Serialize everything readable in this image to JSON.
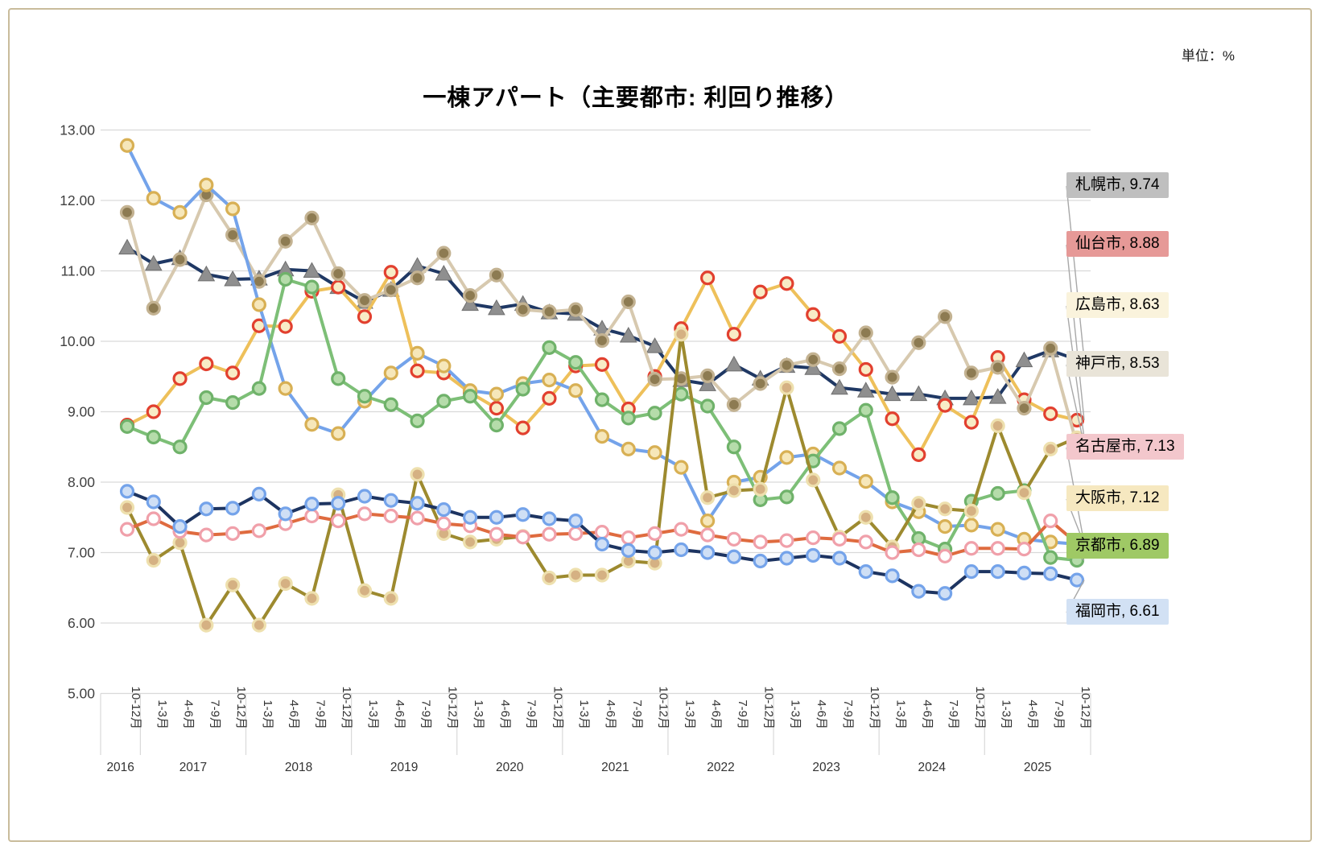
{
  "header": {
    "title": "一棟アパート（主要都市: 利回り推移）",
    "unit_label": "単位：%"
  },
  "chart_data": {
    "type": "line",
    "title": "一棟アパート（主要都市: 利回り推移）",
    "unit": "%",
    "ylim": [
      5,
      13
    ],
    "y_tick_step": 1,
    "y_ticks": [
      "13.00",
      "12.00",
      "11.00",
      "10.00",
      "9.00",
      "8.00",
      "7.00",
      "6.00",
      "5.00"
    ],
    "grid": "horizontal",
    "legend_position": "right-callouts",
    "years": [
      "2016",
      "2017",
      "2018",
      "2019",
      "2020",
      "2021",
      "2022",
      "2023",
      "2024",
      "2025"
    ],
    "quarters_per_year": [
      1,
      4,
      4,
      4,
      4,
      4,
      4,
      4,
      4,
      4
    ],
    "quarter_labels": [
      "10-12月",
      "1-3月",
      "4-6月",
      "7-9月",
      "10-12月",
      "1-3月",
      "4-6月",
      "7-9月",
      "10-12月",
      "1-3月",
      "4-6月",
      "7-9月",
      "10-12月",
      "1-3月",
      "4-6月",
      "7-9月",
      "10-12月",
      "1-3月",
      "4-6月",
      "7-9月",
      "10-12月",
      "1-3月",
      "4-6月",
      "7-9月",
      "10-12月",
      "1-3月",
      "4-6月",
      "7-9月",
      "10-12月",
      "1-3月",
      "4-6月",
      "7-9月",
      "10-12月",
      "1-3月",
      "4-6月",
      "7-9月",
      "10-12月"
    ],
    "draw_order": [
      "sapporo",
      "sendai",
      "kobe",
      "osaka",
      "kyoto",
      "hiroshima",
      "nagoya",
      "fukuoka"
    ],
    "series": [
      {
        "key": "sapporo",
        "name": "札幌市",
        "final_value": 9.74,
        "legend_label": "札幌市, 9.74",
        "legend_bg": "#bfbfbf",
        "line_color": "#1f3864",
        "marker": "triangle",
        "marker_fill": "#8f8f8f",
        "marker_stroke": "#6e6e6e",
        "values": [
          11.33,
          11.1,
          11.18,
          10.95,
          10.88,
          10.89,
          11.02,
          11.0,
          10.77,
          10.56,
          10.73,
          11.07,
          10.96,
          10.53,
          10.47,
          10.53,
          10.41,
          10.39,
          10.18,
          10.08,
          9.93,
          9.45,
          9.39,
          9.67,
          9.47,
          9.65,
          9.62,
          9.34,
          9.3,
          9.25,
          9.25,
          9.19,
          9.19,
          9.21,
          9.73,
          9.87,
          9.74
        ]
      },
      {
        "key": "sendai",
        "name": "仙台市",
        "final_value": 8.88,
        "legend_label": "仙台市, 8.88",
        "legend_bg": "#e69997",
        "line_color": "#eec05a",
        "marker": "circle",
        "marker_fill": "#f8ecc6",
        "marker_stroke": "#e2402f",
        "values": [
          8.81,
          9.0,
          9.47,
          9.68,
          9.55,
          10.22,
          10.21,
          10.71,
          10.77,
          10.35,
          10.98,
          9.58,
          9.55,
          9.27,
          9.05,
          8.77,
          9.19,
          9.65,
          9.67,
          9.04,
          9.5,
          10.18,
          10.9,
          10.1,
          10.7,
          10.82,
          10.38,
          10.07,
          9.6,
          8.9,
          8.39,
          9.09,
          8.85,
          9.77,
          9.17,
          8.97,
          8.88
        ]
      },
      {
        "key": "hiroshima",
        "name": "広島市",
        "final_value": 8.63,
        "legend_label": "広島市, 8.63",
        "legend_bg": "#faf3dc",
        "line_color": "#9d8a2f",
        "marker": "circle",
        "marker_fill": "#d5b183",
        "marker_stroke": "#eee0ae",
        "values": [
          7.64,
          6.89,
          7.14,
          5.97,
          6.54,
          5.97,
          6.56,
          6.35,
          7.82,
          6.46,
          6.35,
          8.11,
          7.27,
          7.15,
          7.19,
          7.23,
          6.64,
          6.68,
          6.68,
          6.88,
          6.85,
          10.1,
          7.78,
          7.88,
          7.9,
          9.34,
          8.03,
          7.22,
          7.5,
          7.08,
          7.7,
          7.62,
          7.59,
          8.8,
          7.85,
          8.47,
          8.63
        ]
      },
      {
        "key": "kobe",
        "name": "神戸市",
        "final_value": 8.53,
        "legend_label": "神戸市, 8.53",
        "legend_bg": "#e9e4d8",
        "line_color": "#d7c9af",
        "marker": "circle",
        "marker_fill": "#8d7b52",
        "marker_stroke": "#c3b291",
        "values": [
          11.83,
          10.47,
          11.16,
          12.08,
          11.51,
          10.85,
          11.42,
          11.75,
          10.96,
          10.58,
          10.73,
          10.9,
          11.25,
          10.65,
          10.94,
          10.45,
          10.42,
          10.45,
          10.01,
          10.56,
          9.46,
          9.47,
          9.51,
          9.1,
          9.4,
          9.66,
          9.74,
          9.61,
          10.12,
          9.49,
          9.98,
          10.35,
          9.55,
          9.63,
          9.05,
          9.9,
          8.53
        ]
      },
      {
        "key": "nagoya",
        "name": "名古屋市",
        "final_value": 7.13,
        "legend_label": "名古屋市, 7.13",
        "legend_bg": "#f3c7cc",
        "line_color": "#df6b3f",
        "marker": "circle",
        "marker_fill": "#ffffff",
        "marker_stroke": "#f0a0aa",
        "values": [
          7.33,
          7.48,
          7.3,
          7.25,
          7.27,
          7.31,
          7.41,
          7.52,
          7.45,
          7.55,
          7.52,
          7.49,
          7.41,
          7.38,
          7.26,
          7.22,
          7.26,
          7.27,
          7.29,
          7.21,
          7.27,
          7.33,
          7.25,
          7.19,
          7.15,
          7.17,
          7.21,
          7.19,
          7.15,
          7.0,
          7.04,
          6.95,
          7.06,
          7.06,
          7.05,
          7.45,
          7.13
        ]
      },
      {
        "key": "osaka",
        "name": "大阪市",
        "final_value": 7.12,
        "legend_label": "大阪市, 7.12",
        "legend_bg": "#f6e8c0",
        "line_color": "#74a3ea",
        "marker": "circle",
        "marker_fill": "#f6e7ba",
        "marker_stroke": "#d8b054",
        "values": [
          12.78,
          12.03,
          11.83,
          12.22,
          11.88,
          10.52,
          9.33,
          8.82,
          8.69,
          9.15,
          9.55,
          9.83,
          9.65,
          9.3,
          9.25,
          9.4,
          9.45,
          9.3,
          8.65,
          8.47,
          8.42,
          8.21,
          7.45,
          8.0,
          8.07,
          8.35,
          8.4,
          8.2,
          8.01,
          7.72,
          7.58,
          7.37,
          7.39,
          7.33,
          7.19,
          7.15,
          7.12
        ]
      },
      {
        "key": "kyoto",
        "name": "京都市",
        "final_value": 6.89,
        "legend_label": "京都市, 6.89",
        "legend_bg": "#9fc965",
        "line_color": "#7dbf77",
        "marker": "circle",
        "marker_fill": "#b5dcaa",
        "marker_stroke": "#6fb26a",
        "values": [
          8.79,
          8.64,
          8.5,
          9.2,
          9.13,
          9.33,
          10.88,
          10.77,
          9.47,
          9.22,
          9.1,
          8.87,
          9.15,
          9.22,
          8.81,
          9.32,
          9.91,
          9.7,
          9.17,
          8.91,
          8.98,
          9.25,
          9.08,
          8.5,
          7.75,
          7.79,
          8.3,
          8.76,
          9.02,
          7.78,
          7.2,
          7.05,
          7.73,
          7.84,
          7.88,
          6.93,
          6.89
        ]
      },
      {
        "key": "fukuoka",
        "name": "福岡市",
        "final_value": 6.61,
        "legend_label": "福岡市, 6.61",
        "legend_bg": "#d2e1f4",
        "line_color": "#1d3461",
        "marker": "circle",
        "marker_fill": "#cfdff5",
        "marker_stroke": "#74a3ea",
        "values": [
          7.87,
          7.72,
          7.37,
          7.62,
          7.63,
          7.83,
          7.55,
          7.69,
          7.7,
          7.8,
          7.74,
          7.7,
          7.61,
          7.5,
          7.5,
          7.54,
          7.48,
          7.45,
          7.12,
          7.03,
          7.0,
          7.04,
          7.0,
          6.94,
          6.88,
          6.92,
          6.96,
          6.92,
          6.73,
          6.67,
          6.45,
          6.42,
          6.73,
          6.73,
          6.71,
          6.7,
          6.61
        ]
      }
    ]
  }
}
